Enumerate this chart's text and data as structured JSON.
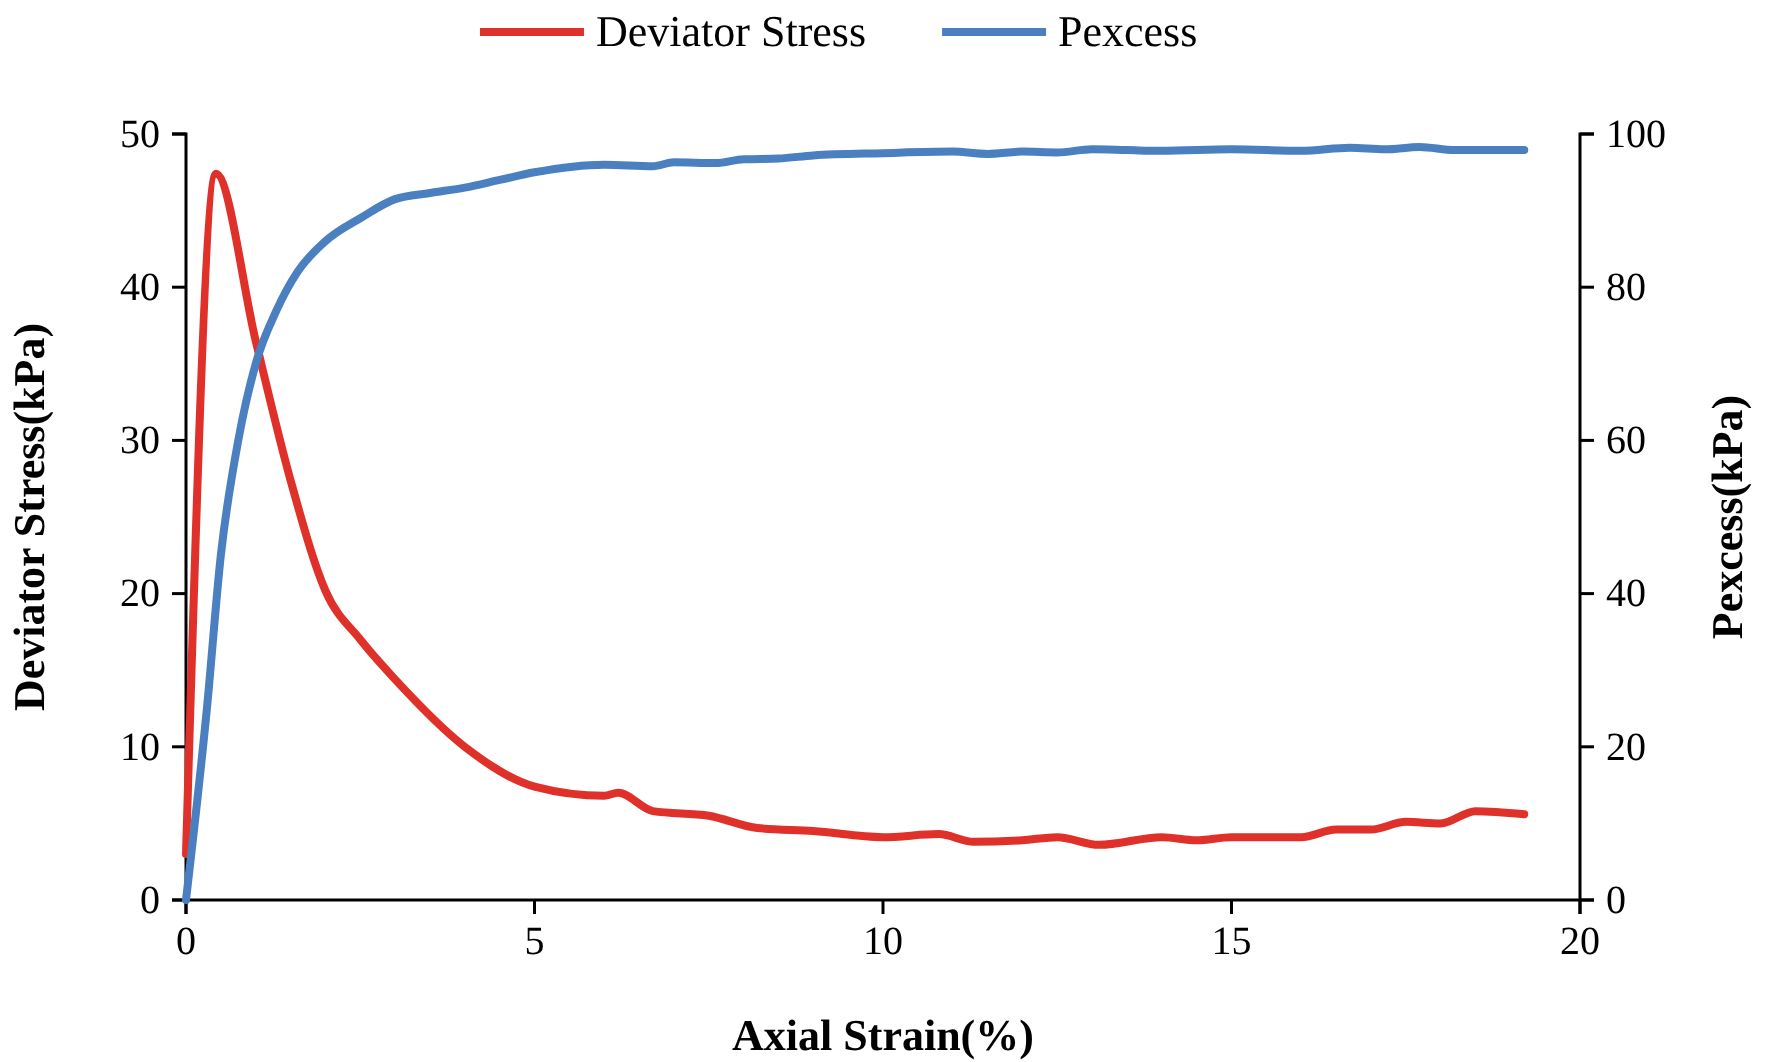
{
  "chart_data": {
    "type": "line",
    "xlabel": "Axial Strain(%)",
    "ylabel": "Deviator Stress(kPa)",
    "y2label": "Pexcess(kPa)",
    "xlim": [
      0,
      20
    ],
    "xticks": [
      0,
      5,
      10,
      15,
      20
    ],
    "ylim": [
      0,
      50
    ],
    "yticks": [
      0,
      10,
      20,
      30,
      40,
      50
    ],
    "y2lim": [
      0,
      100
    ],
    "y2ticks": [
      0,
      20,
      40,
      60,
      80,
      100
    ],
    "legend": "top",
    "grid": false,
    "marker": "none",
    "line_style": "solid",
    "series": [
      {
        "name": "Deviator Stress",
        "color": "#e0302a",
        "x": [
          0,
          0.43,
          1,
          1.5,
          2,
          2.5,
          3,
          4,
          5,
          6,
          6.2,
          6.7,
          7.5,
          8.2,
          9,
          10,
          10.8,
          11.3,
          12,
          12.5,
          13.1,
          14,
          14.5,
          15,
          16,
          16.5,
          17,
          17.5,
          18,
          18.5,
          19.2
        ],
        "values": [
          3,
          47.4,
          36.5,
          27.4,
          20.2,
          17,
          14.4,
          10,
          7.4,
          6.8,
          7,
          5.8,
          5.5,
          4.7,
          4.5,
          4.1,
          4.3,
          3.8,
          3.9,
          4.1,
          3.6,
          4.1,
          3.9,
          4.1,
          4.1,
          4.6,
          4.6,
          5.1,
          5,
          5.8,
          5.6
        ]
      },
      {
        "name": "Pexcess",
        "color": "#4a7fc0",
        "axis": "y2",
        "x": [
          0,
          0.3,
          0.5,
          0.75,
          1,
          1.3,
          1.6,
          2,
          2.5,
          3,
          3.5,
          4,
          4.5,
          5,
          6,
          6.7,
          7,
          7.6,
          8,
          8.5,
          9,
          10,
          11,
          11.5,
          12,
          12.5,
          13,
          13.5,
          14,
          15,
          16,
          16.7,
          17.2,
          17.7,
          18.2,
          19.2
        ],
        "values": [
          0,
          25,
          45,
          60,
          70,
          77,
          82,
          86,
          89,
          91.5,
          92.3,
          93,
          94,
          95,
          96,
          95.8,
          96.3,
          96.2,
          96.7,
          96.8,
          97.2,
          97.5,
          97.7,
          97.4,
          97.7,
          97.6,
          98,
          97.9,
          97.8,
          98,
          97.8,
          98.2,
          98,
          98.3,
          97.9,
          97.9
        ]
      }
    ]
  }
}
